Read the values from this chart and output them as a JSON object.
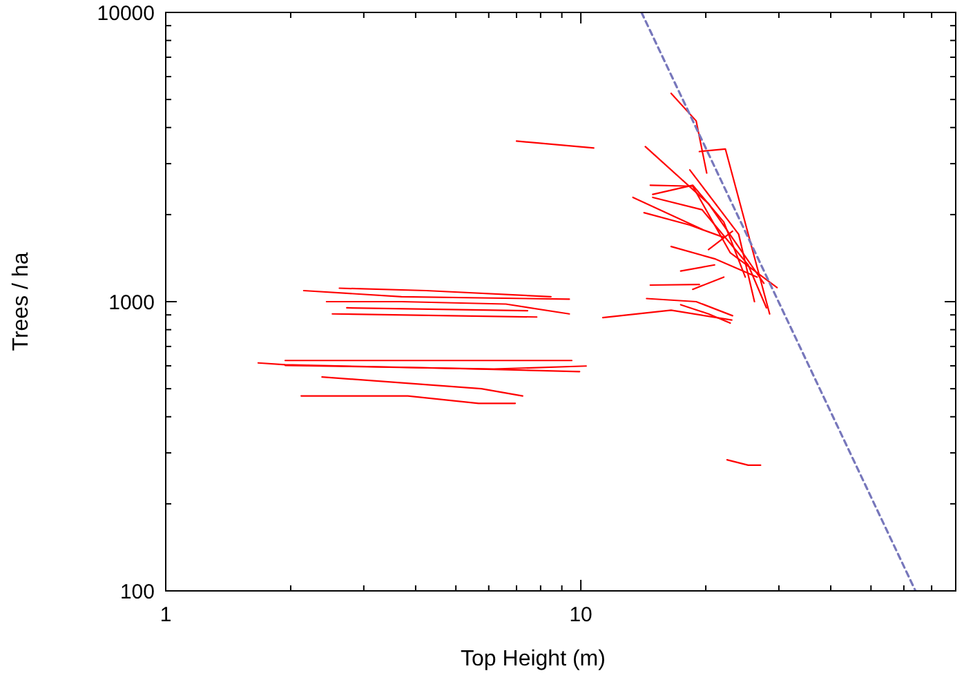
{
  "chart_data": {
    "type": "line",
    "xlabel": "Top Height (m)",
    "ylabel": "Trees / ha",
    "log": "xy",
    "xlim": [
      1,
      80
    ],
    "ylim": [
      100,
      10000
    ],
    "xticks": [
      1,
      {
        "value": 2,
        "label": null
      },
      {
        "value": 3,
        "label": null
      },
      {
        "value": 4,
        "label": null
      },
      {
        "value": 5,
        "label": null
      },
      {
        "value": 6,
        "label": null
      },
      {
        "value": 7,
        "label": null
      },
      {
        "value": 8,
        "label": null
      },
      {
        "value": 9,
        "label": null
      },
      10,
      {
        "value": 20,
        "label": null
      },
      {
        "value": 30,
        "label": null
      },
      {
        "value": 40,
        "label": null
      },
      {
        "value": 50,
        "label": null
      },
      {
        "value": 60,
        "label": null
      },
      {
        "value": 70,
        "label": null
      },
      {
        "value": 80,
        "label": null
      }
    ],
    "yticks": [
      100,
      {
        "value": 200,
        "label": null
      },
      {
        "value": 300,
        "label": null
      },
      {
        "value": 400,
        "label": null
      },
      {
        "value": 500,
        "label": null
      },
      {
        "value": 600,
        "label": null
      },
      {
        "value": 700,
        "label": null
      },
      {
        "value": 800,
        "label": null
      },
      {
        "value": 900,
        "label": null
      },
      1000,
      {
        "value": 2000,
        "label": null
      },
      {
        "value": 3000,
        "label": null
      },
      {
        "value": 4000,
        "label": null
      },
      {
        "value": 5000,
        "label": null
      },
      {
        "value": 6000,
        "label": null
      },
      {
        "value": 7000,
        "label": null
      },
      {
        "value": 8000,
        "label": null
      },
      {
        "value": 9000,
        "label": null
      },
      10000
    ],
    "grid": false,
    "marker": "none",
    "line_style": "solid",
    "series": [
      {
        "color": "#ff0000",
        "x": [
          2.62,
          4.24,
          8.47
        ],
        "values": [
          1113,
          1092,
          1040
        ]
      },
      {
        "color": "#ff0000",
        "x": [
          2.15,
          3.7,
          9.38
        ],
        "values": [
          1092,
          1040,
          1020
        ]
      },
      {
        "color": "#ff0000",
        "x": [
          2.44,
          3.7,
          6.6,
          9.38
        ],
        "values": [
          1000,
          1000,
          981,
          907
        ]
      },
      {
        "color": "#ff0000",
        "x": [
          2.52,
          7.83
        ],
        "values": [
          907,
          885
        ]
      },
      {
        "color": "#ff0000",
        "x": [
          2.73,
          7.44
        ],
        "values": [
          952,
          930
        ]
      },
      {
        "color": "#ff0000",
        "x": [
          1.67,
          1.94,
          4.39,
          9.93
        ],
        "values": [
          614,
          605,
          590,
          573
        ]
      },
      {
        "color": "#ff0000",
        "x": [
          1.94,
          9.51
        ],
        "values": [
          626,
          626
        ]
      },
      {
        "color": "#ff0000",
        "x": [
          1.94,
          6.17,
          10.3
        ],
        "values": [
          602,
          585,
          599
        ]
      },
      {
        "color": "#ff0000",
        "x": [
          2.38,
          5.76,
          7.24
        ],
        "values": [
          549,
          500,
          472
        ]
      },
      {
        "color": "#ff0000",
        "x": [
          2.12,
          3.83,
          5.67,
          6.95
        ],
        "values": [
          472,
          472,
          445,
          445
        ]
      },
      {
        "color": "#ff0000",
        "x": [
          7.0,
          10.74
        ],
        "values": [
          3590,
          3400
        ]
      },
      {
        "color": "#ff0000",
        "x": [
          11.3,
          16.5,
          23.1
        ],
        "values": [
          881,
          934,
          864
        ]
      },
      {
        "color": "#ff0000",
        "x": [
          22.5,
          25.3,
          27.1
        ],
        "values": [
          284,
          272,
          272
        ]
      },
      {
        "color": "#ff0000",
        "x": [
          16.5,
          18.96,
          20.1
        ],
        "values": [
          5250,
          4217,
          2786
        ]
      },
      {
        "color": "#ff0000",
        "x": [
          19.3,
          22.3,
          28.5
        ],
        "values": [
          3304,
          3370,
          907
        ]
      },
      {
        "color": "#ff0000",
        "x": [
          14.3,
          20.3,
          27.6
        ],
        "values": [
          3436,
          2183,
          1158
        ]
      },
      {
        "color": "#ff0000",
        "x": [
          13.35,
          19.6
        ],
        "values": [
          2293,
          1778
        ]
      },
      {
        "color": "#ff0000",
        "x": [
          14.7,
          18.6,
          22.9,
          29.7
        ],
        "values": [
          2527,
          2507,
          1477,
          1119
        ]
      },
      {
        "color": "#ff0000",
        "x": [
          14.2,
          18.3,
          22.1
        ],
        "values": [
          2030,
          1840,
          1668
        ]
      },
      {
        "color": "#ff0000",
        "x": [
          18.3,
          24.0,
          26.2
        ],
        "values": [
          2855,
          1710,
          1000
        ]
      },
      {
        "color": "#ff0000",
        "x": [
          16.5,
          21.0,
          26.6
        ],
        "values": [
          1551,
          1407,
          1216
        ]
      },
      {
        "color": "#ff0000",
        "x": [
          17.4,
          21.0
        ],
        "values": [
          1276,
          1340
        ]
      },
      {
        "color": "#ff0000",
        "x": [
          14.7,
          19.3
        ],
        "values": [
          1141,
          1146
        ]
      },
      {
        "color": "#ff0000",
        "x": [
          18.6,
          22.1
        ],
        "values": [
          1103,
          1216
        ]
      },
      {
        "color": "#ff0000",
        "x": [
          14.4,
          18.96,
          23.2
        ],
        "values": [
          1025,
          1000,
          894
        ]
      },
      {
        "color": "#ff0000",
        "x": [
          17.4,
          20.3,
          22.9
        ],
        "values": [
          976,
          907,
          843
        ]
      },
      {
        "color": "#ff0000",
        "x": [
          14.9,
          18.6,
          22.1,
          24.9
        ],
        "values": [
          2349,
          2527,
          1885,
          1216
        ]
      },
      {
        "color": "#ff0000",
        "x": [
          14.9,
          19.6,
          25.3,
          28.0
        ],
        "values": [
          2293,
          2078,
          1340,
          952
        ]
      },
      {
        "color": "#ff0000",
        "x": [
          20.3,
          23.2
        ],
        "values": [
          1514,
          1752
        ]
      },
      {
        "color": "#7777bb",
        "line_style": "dashed",
        "x": [
          14,
          64
        ],
        "values": [
          10000,
          100
        ]
      }
    ]
  }
}
